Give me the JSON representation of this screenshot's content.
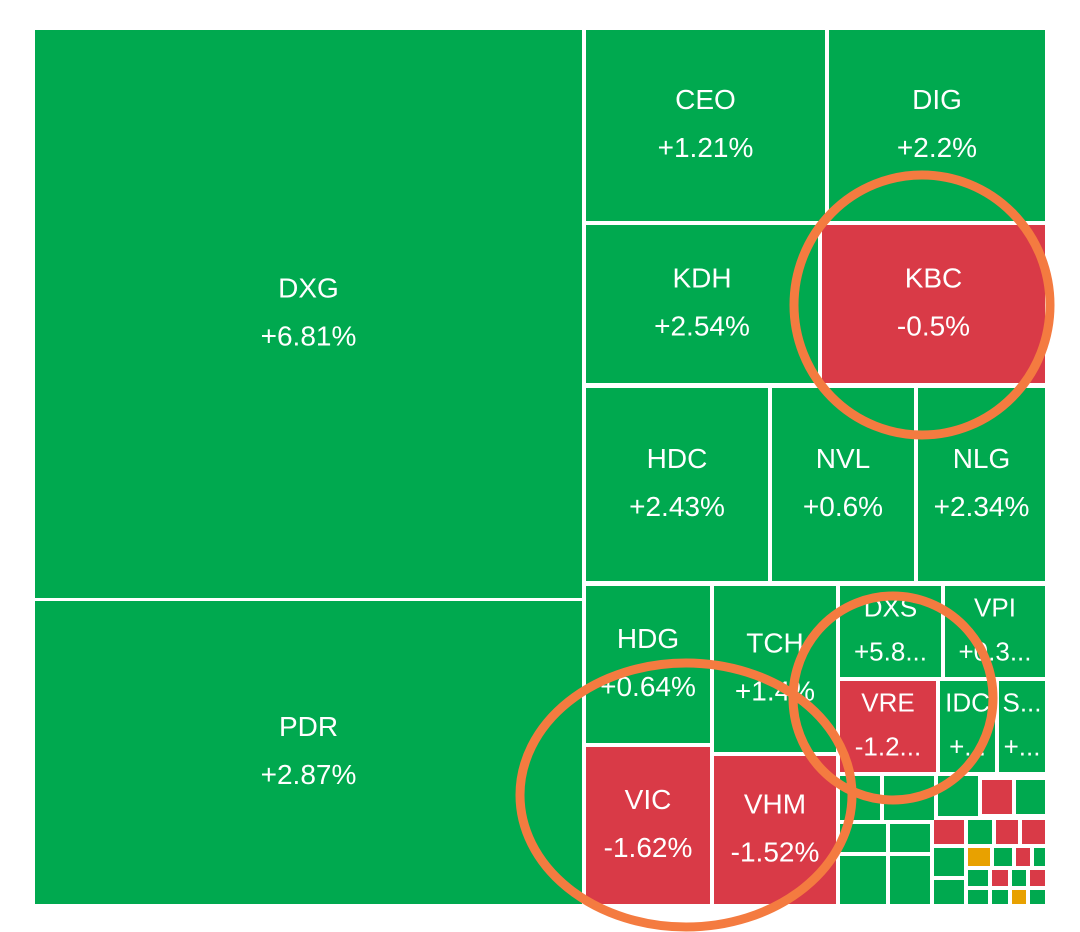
{
  "tiles": [
    {
      "ticker": "DXG",
      "change": "+6.81%"
    },
    {
      "ticker": "PDR",
      "change": "+2.87%"
    },
    {
      "ticker": "CEO",
      "change": "+1.21%"
    },
    {
      "ticker": "DIG",
      "change": "+2.2%"
    },
    {
      "ticker": "KDH",
      "change": "+2.54%"
    },
    {
      "ticker": "KBC",
      "change": "-0.5%"
    },
    {
      "ticker": "HDC",
      "change": "+2.43%"
    },
    {
      "ticker": "NVL",
      "change": "+0.6%"
    },
    {
      "ticker": "NLG",
      "change": "+2.34%"
    },
    {
      "ticker": "HDG",
      "change": "+0.64%"
    },
    {
      "ticker": "TCH",
      "change": "+1.4%"
    },
    {
      "ticker": "DXS",
      "change": "+5.8..."
    },
    {
      "ticker": "VPI",
      "change": "+0.3..."
    },
    {
      "ticker": "VRE",
      "change": "-1.2..."
    },
    {
      "ticker": "IDC",
      "change": "+..."
    },
    {
      "ticker": "S...",
      "change": "+..."
    },
    {
      "ticker": "VIC",
      "change": "-1.62%"
    },
    {
      "ticker": "VHM",
      "change": "-1.52%"
    }
  ]
}
